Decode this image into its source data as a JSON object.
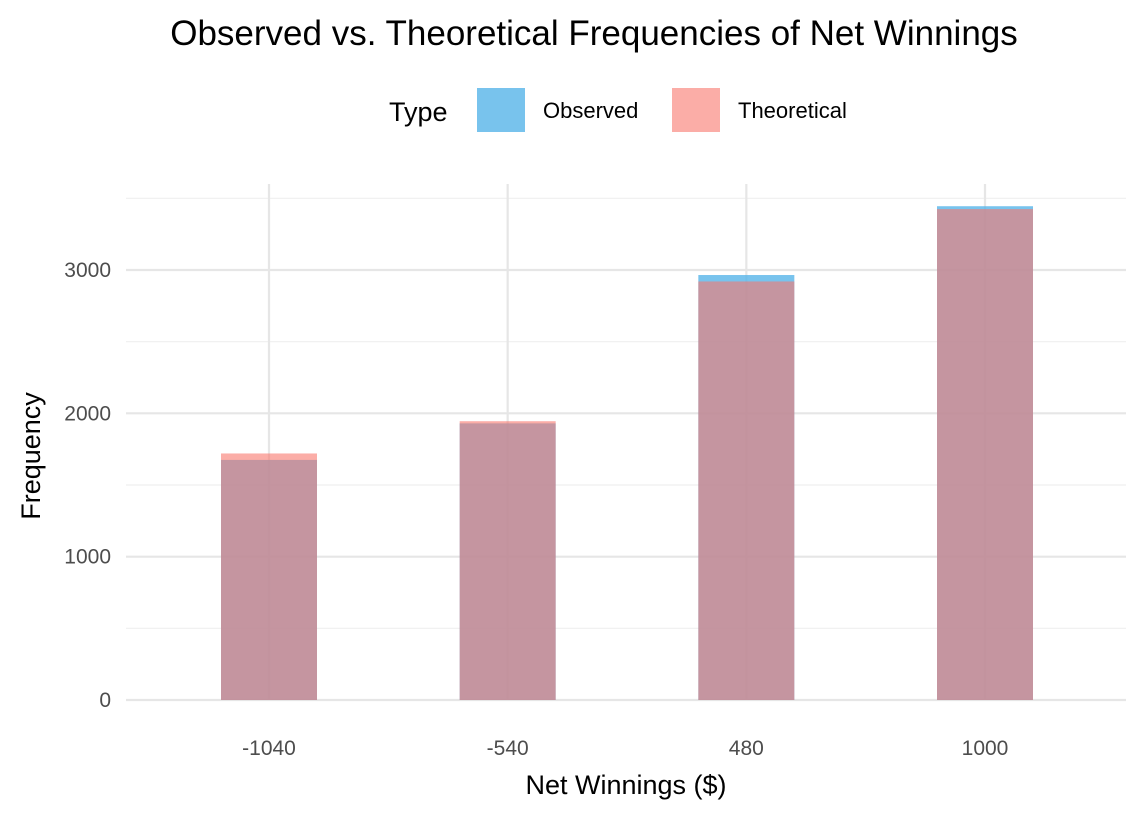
{
  "chart_data": {
    "type": "bar",
    "title": "Observed vs. Theoretical Frequencies of Net Winnings",
    "xlabel": "Net Winnings ($)",
    "ylabel": "Frequency",
    "categories": [
      "-1040",
      "-540",
      "480",
      "1000"
    ],
    "series": [
      {
        "name": "Observed",
        "values": [
          1675,
          1930,
          2965,
          3445
        ],
        "color": "#56B4E9"
      },
      {
        "name": "Theoretical",
        "values": [
          1720,
          1945,
          2920,
          3425
        ],
        "color": "#F8766D"
      }
    ],
    "overlap_color": "#C28E96",
    "ylim": [
      0,
      3520
    ],
    "yticks": [
      0,
      1000,
      2000,
      3000
    ],
    "grid": true,
    "legend": {
      "title": "Type",
      "position": "top"
    }
  }
}
